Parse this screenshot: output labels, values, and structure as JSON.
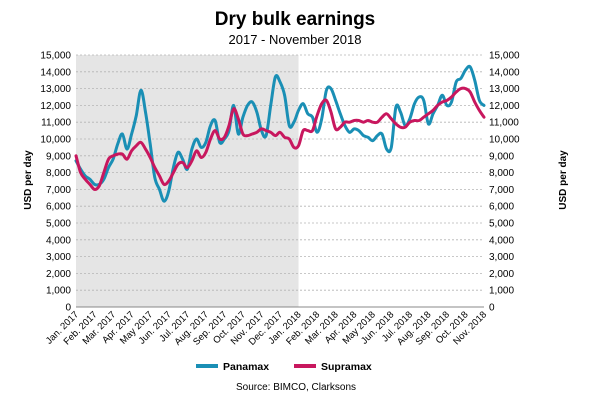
{
  "chart_data": {
    "type": "line",
    "title": "Dry bulk earnings",
    "subtitle": "2017 - November 2018",
    "ylabel_left": "USD per day",
    "ylabel_right": "USD per day",
    "ylim": [
      0,
      15000
    ],
    "yticks": [
      0,
      1000,
      2000,
      3000,
      4000,
      5000,
      6000,
      7000,
      8000,
      9000,
      10000,
      11000,
      12000,
      13000,
      14000,
      15000
    ],
    "ytick_labels": [
      "0",
      "1,000",
      "2,000",
      "3,000",
      "4,000",
      "5,000",
      "6,000",
      "7,000",
      "8,000",
      "9,000",
      "10,000",
      "11,000",
      "12,000",
      "13,000",
      "14,000",
      "15,000"
    ],
    "x_categories": [
      "Jan. 2017",
      "Feb. 2017",
      "Mar. 2017",
      "Apr. 2017",
      "May 2017",
      "Jun. 2017",
      "Jul. 2017",
      "Aug. 2017",
      "Sep. 2017",
      "Oct. 2017",
      "Nov. 2017",
      "Dec. 2017",
      "Jan. 2018",
      "Feb. 2018",
      "Mar. 2018",
      "Apr. 2018",
      "May 2018",
      "Jun. 2018",
      "Jul. 2018",
      "Aug. 2018",
      "Sep. 2018",
      "Oct. 2018",
      "Nov. 2018"
    ],
    "shaded_region": {
      "from": 0,
      "to": 12,
      "meaning": "2017"
    },
    "grid": true,
    "legend_position": "bottom",
    "source": "Source: BIMCO, Clarksons",
    "series": [
      {
        "name": "Panamax",
        "color": "#1a8fb5",
        "x": [
          0,
          0.25,
          0.5,
          0.75,
          1,
          1.25,
          1.5,
          1.75,
          2,
          2.25,
          2.5,
          2.75,
          3,
          3.25,
          3.5,
          3.75,
          4,
          4.25,
          4.5,
          4.75,
          5,
          5.25,
          5.5,
          5.75,
          6,
          6.25,
          6.5,
          6.75,
          7,
          7.25,
          7.5,
          7.75,
          8,
          8.25,
          8.5,
          8.75,
          9,
          9.25,
          9.5,
          9.75,
          10,
          10.25,
          10.5,
          10.75,
          11,
          11.25,
          11.5,
          11.75,
          12,
          12.25,
          12.5,
          12.75,
          13,
          13.25,
          13.5,
          13.75,
          14,
          14.25,
          14.5,
          14.75,
          15,
          15.25,
          15.5,
          15.75,
          16,
          16.25,
          16.5,
          16.75,
          17,
          17.25,
          17.5,
          17.75,
          18,
          18.25,
          18.5,
          18.75,
          19,
          19.25,
          19.5,
          19.75,
          20,
          20.25,
          20.5,
          20.75,
          21,
          21.25,
          21.5,
          21.75,
          22
        ],
        "values": [
          8700,
          8200,
          7800,
          7600,
          7300,
          7300,
          7600,
          8300,
          8800,
          9700,
          10300,
          9400,
          10300,
          11400,
          12900,
          11600,
          9700,
          7700,
          7000,
          6300,
          6900,
          8300,
          9200,
          8800,
          8200,
          9400,
          10000,
          9500,
          9800,
          10800,
          11100,
          9800,
          10000,
          10500,
          12000,
          10300,
          11300,
          12000,
          12200,
          11600,
          10500,
          10200,
          12000,
          13700,
          13400,
          12600,
          10800,
          11000,
          11700,
          12100,
          11500,
          11300,
          10400,
          11200,
          12900,
          13000,
          12300,
          11500,
          10800,
          10400,
          10600,
          10500,
          10200,
          10100,
          9900,
          10200,
          10300,
          9400,
          9500,
          11900,
          11600,
          10800,
          11200,
          12100,
          12500,
          12300,
          10900,
          11500,
          12000,
          12600,
          12000,
          12200,
          13400,
          13600,
          14100,
          14300,
          13500,
          12300,
          12000
        ]
      },
      {
        "name": "Supramax",
        "color": "#c8175e",
        "x": [
          0,
          0.25,
          0.5,
          0.75,
          1,
          1.25,
          1.5,
          1.75,
          2,
          2.25,
          2.5,
          2.75,
          3,
          3.25,
          3.5,
          3.75,
          4,
          4.25,
          4.5,
          4.75,
          5,
          5.25,
          5.5,
          5.75,
          6,
          6.25,
          6.5,
          6.75,
          7,
          7.25,
          7.5,
          7.75,
          8,
          8.25,
          8.5,
          8.75,
          9,
          9.25,
          9.5,
          9.75,
          10,
          10.25,
          10.5,
          10.75,
          11,
          11.25,
          11.5,
          11.75,
          12,
          12.25,
          12.5,
          12.75,
          13,
          13.25,
          13.5,
          13.75,
          14,
          14.25,
          14.5,
          14.75,
          15,
          15.25,
          15.5,
          15.75,
          16,
          16.25,
          16.5,
          16.75,
          17,
          17.25,
          17.5,
          17.75,
          18,
          18.25,
          18.5,
          18.75,
          19,
          19.25,
          19.5,
          19.75,
          20,
          20.25,
          20.5,
          20.75,
          21,
          21.25,
          21.5,
          21.75,
          22
        ],
        "values": [
          9000,
          8000,
          7600,
          7300,
          7000,
          7200,
          8000,
          8800,
          9000,
          9100,
          9100,
          8800,
          9300,
          9600,
          9800,
          9400,
          8900,
          8300,
          7800,
          7300,
          7500,
          8000,
          8500,
          8600,
          8300,
          8700,
          9300,
          8900,
          9200,
          10000,
          10500,
          10000,
          10100,
          10800,
          11800,
          11200,
          10300,
          10200,
          10300,
          10400,
          10600,
          10500,
          10400,
          10200,
          10400,
          10100,
          10000,
          9500,
          9600,
          10500,
          10500,
          10500,
          11400,
          12100,
          12300,
          11600,
          10600,
          10700,
          11000,
          11000,
          11100,
          11100,
          11000,
          11100,
          11000,
          11000,
          11300,
          11500,
          11200,
          10900,
          10700,
          10700,
          11000,
          11100,
          11100,
          11300,
          11500,
          11700,
          12000,
          12200,
          12300,
          12500,
          12800,
          13000,
          13000,
          12800,
          12200,
          11700,
          11300
        ]
      }
    ]
  }
}
